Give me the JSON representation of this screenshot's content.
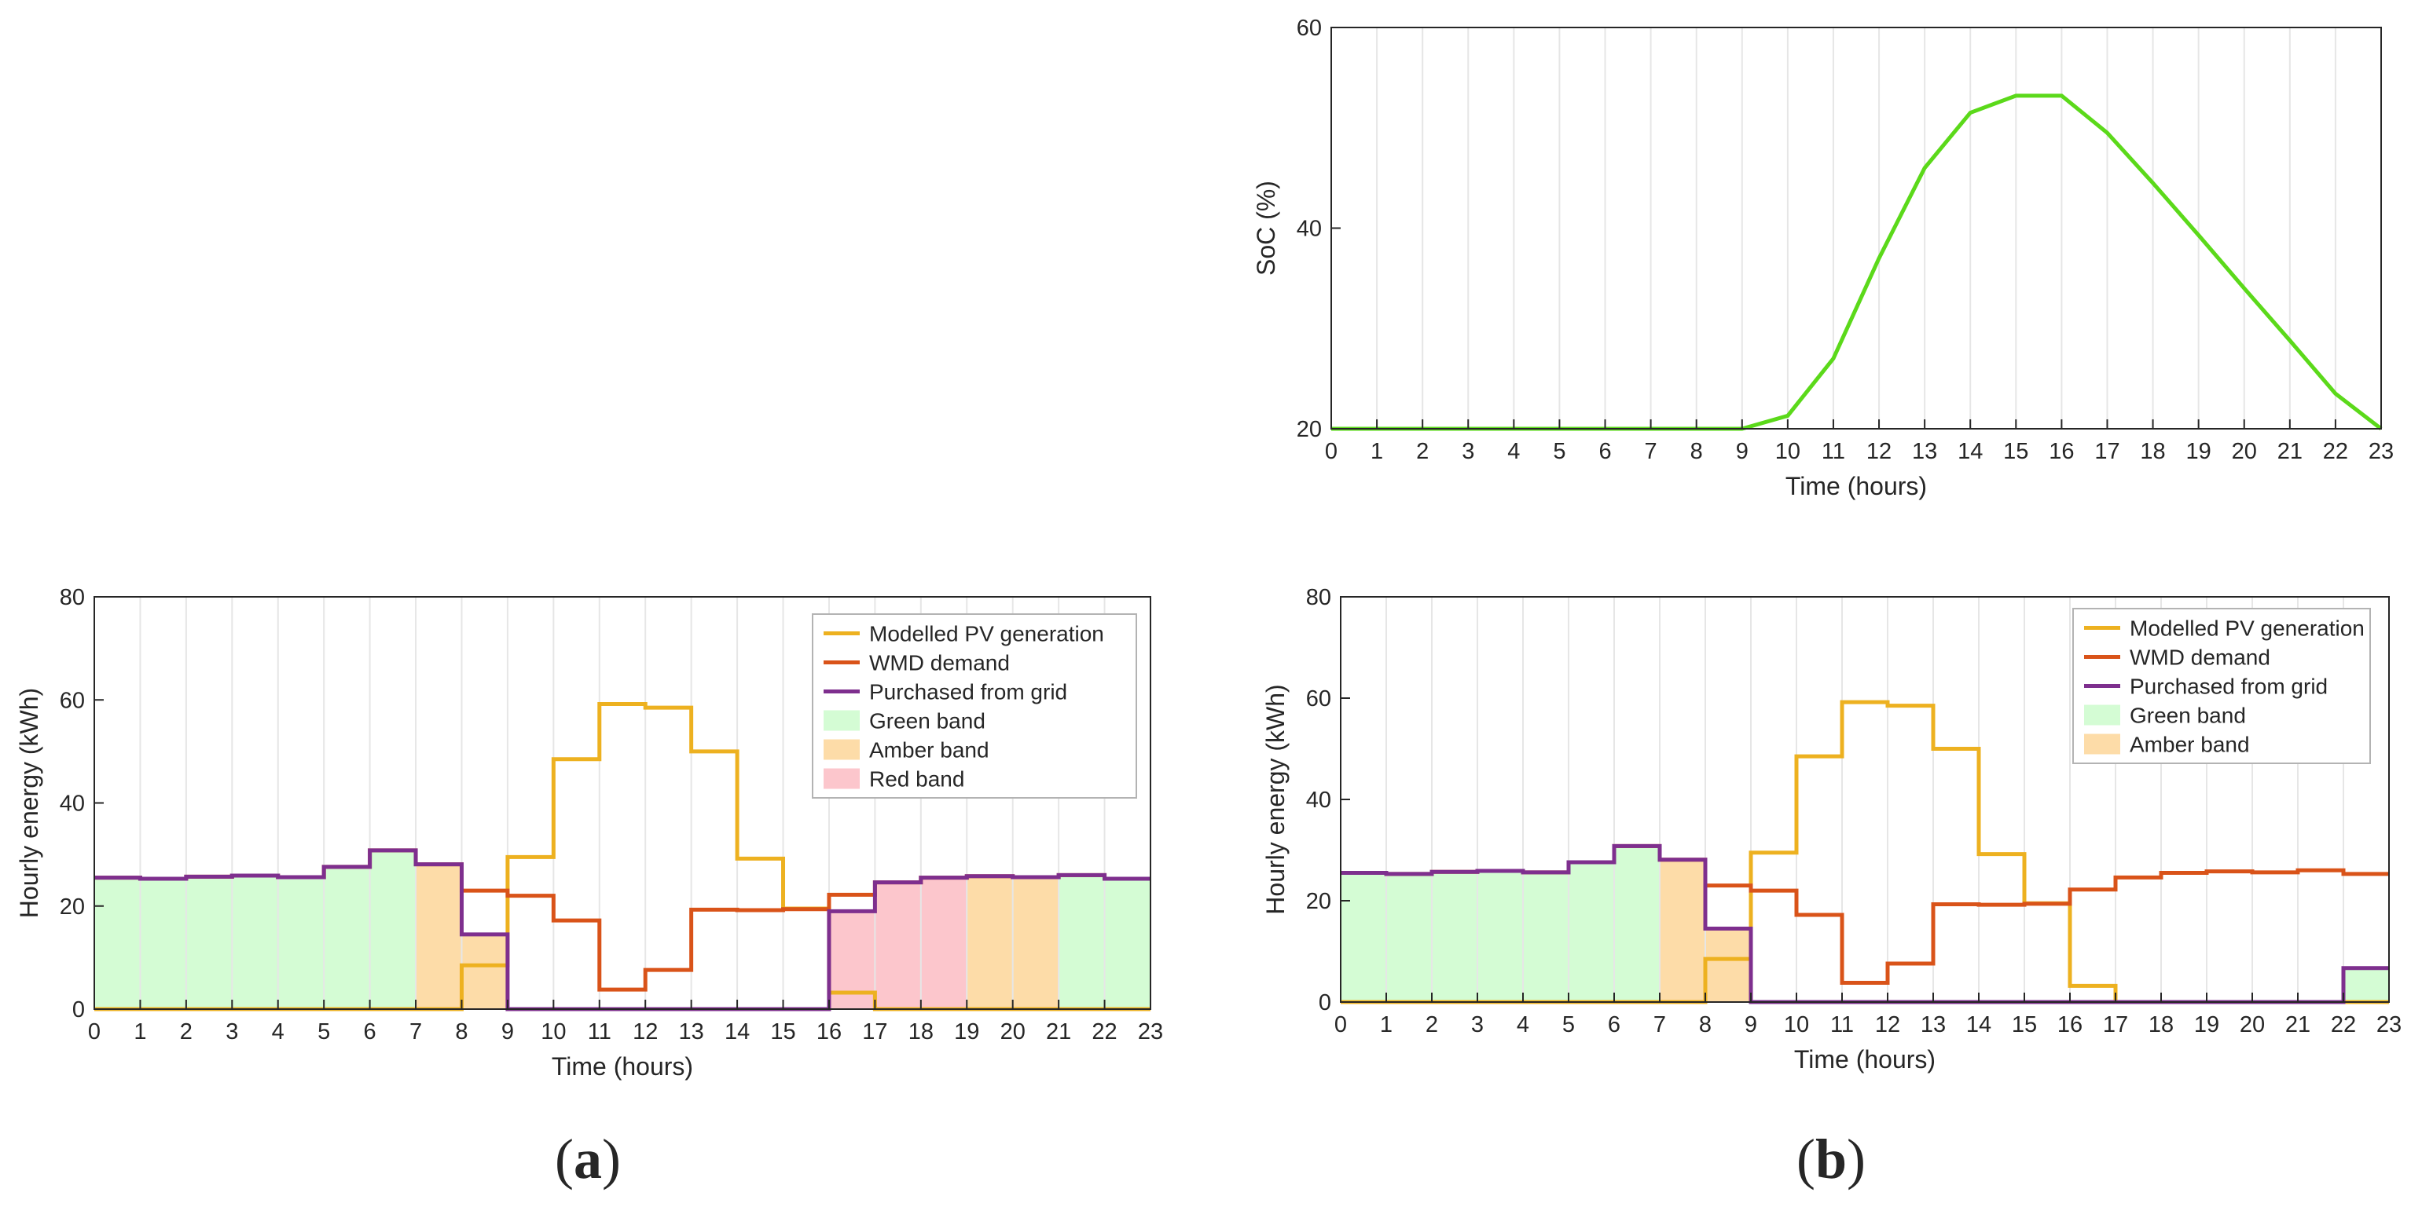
{
  "colors": {
    "pv": "#EDB120",
    "demand": "#D95319",
    "grid": "#7E2F8E",
    "soc": "#5BD91A",
    "green_band": "#D4FCD4",
    "amber_band": "#FDDCA8",
    "red_band": "#FCC6CC",
    "gridline": "#E6E6E6",
    "axis": "#262626"
  },
  "panel_labels": {
    "a": {
      "open": "(",
      "letter": "a",
      "close": ")"
    },
    "b": {
      "open": "(",
      "letter": "b",
      "close": ")"
    }
  },
  "chart_data": [
    {
      "id": "soc",
      "type": "line",
      "title": "",
      "xlabel": "Time (hours)",
      "ylabel": "SoC (%)",
      "xlim": [
        0,
        23
      ],
      "ylim": [
        20,
        60
      ],
      "xticks": [
        0,
        1,
        2,
        3,
        4,
        5,
        6,
        7,
        8,
        9,
        10,
        11,
        12,
        13,
        14,
        15,
        16,
        17,
        18,
        19,
        20,
        21,
        22,
        23
      ],
      "yticks": [
        20,
        40,
        60
      ],
      "grid": "vertical",
      "series": [
        {
          "name": "SoC",
          "color_key": "soc",
          "x": [
            0,
            1,
            2,
            3,
            4,
            5,
            6,
            7,
            8,
            9,
            10,
            11,
            12,
            13,
            14,
            15,
            16,
            17,
            18,
            19,
            20,
            21,
            22,
            23
          ],
          "values": [
            20,
            20,
            20,
            20,
            20,
            20,
            20,
            20,
            20,
            20,
            21.3,
            27,
            37,
            46,
            51.5,
            53.2,
            53.2,
            49.5,
            44.5,
            39.3,
            34,
            28.8,
            23.5,
            20
          ]
        }
      ]
    },
    {
      "id": "a",
      "type": "step",
      "title": "",
      "xlabel": "Time (hours)",
      "ylabel": "Hourly energy (kWh)",
      "xlim": [
        0,
        23
      ],
      "ylim": [
        0,
        80
      ],
      "xticks": [
        0,
        1,
        2,
        3,
        4,
        5,
        6,
        7,
        8,
        9,
        10,
        11,
        12,
        13,
        14,
        15,
        16,
        17,
        18,
        19,
        20,
        21,
        22,
        23
      ],
      "yticks": [
        0,
        20,
        40,
        60,
        80
      ],
      "grid": "vertical",
      "legend_position": "top-right",
      "series": [
        {
          "name": "Modelled PV generation",
          "color_key": "pv",
          "values": [
            0,
            0,
            0,
            0,
            0,
            0,
            0,
            0,
            8.5,
            29.5,
            48.5,
            59.2,
            58.5,
            50,
            29.2,
            19.5,
            3.2,
            0,
            0,
            0,
            0,
            0,
            0
          ]
        },
        {
          "name": "WMD demand",
          "color_key": "demand",
          "values": [
            25.5,
            25.3,
            25.7,
            25.9,
            25.6,
            27.6,
            30.8,
            28.1,
            23,
            22,
            17.2,
            3.8,
            7.6,
            19.3,
            19.2,
            19.4,
            22.2,
            24.6,
            25.5,
            25.8,
            25.6,
            26,
            25.3
          ]
        },
        {
          "name": "Purchased from grid",
          "color_key": "grid",
          "values": [
            25.5,
            25.3,
            25.7,
            25.9,
            25.6,
            27.6,
            30.8,
            28.1,
            14.5,
            0,
            0,
            0,
            0,
            0,
            0,
            0,
            19,
            24.6,
            25.5,
            25.8,
            25.6,
            26,
            25.3
          ]
        }
      ],
      "bands": [
        {
          "name": "Green band",
          "color_key": "green_band",
          "show_in_legend": true
        },
        {
          "name": "Amber band",
          "color_key": "amber_band",
          "show_in_legend": true
        },
        {
          "name": "Red band",
          "color_key": "red_band",
          "show_in_legend": true
        }
      ],
      "band_segments": [
        {
          "band": "Green band",
          "from": 0,
          "to": 7
        },
        {
          "band": "Amber band",
          "from": 7,
          "to": 9
        },
        {
          "band": "Red band",
          "from": 16,
          "to": 19
        },
        {
          "band": "Amber band",
          "from": 19,
          "to": 21
        },
        {
          "band": "Green band",
          "from": 21,
          "to": 23
        }
      ]
    },
    {
      "id": "b",
      "type": "step",
      "title": "",
      "xlabel": "Time (hours)",
      "ylabel": "Hourly energy (kWh)",
      "xlim": [
        0,
        23
      ],
      "ylim": [
        0,
        80
      ],
      "xticks": [
        0,
        1,
        2,
        3,
        4,
        5,
        6,
        7,
        8,
        9,
        10,
        11,
        12,
        13,
        14,
        15,
        16,
        17,
        18,
        19,
        20,
        21,
        22,
        23
      ],
      "yticks": [
        0,
        20,
        40,
        60,
        80
      ],
      "grid": "vertical",
      "legend_position": "top-right",
      "series": [
        {
          "name": "Modelled PV generation",
          "color_key": "pv",
          "values": [
            0,
            0,
            0,
            0,
            0,
            0,
            0,
            0,
            8.5,
            29.5,
            48.5,
            59.2,
            58.5,
            50,
            29.2,
            19.5,
            3.2,
            0,
            0,
            0,
            0,
            0,
            0
          ]
        },
        {
          "name": "WMD demand",
          "color_key": "demand",
          "values": [
            25.5,
            25.3,
            25.7,
            25.9,
            25.6,
            27.6,
            30.8,
            28.1,
            23,
            22,
            17.2,
            3.8,
            7.6,
            19.3,
            19.2,
            19.4,
            22.2,
            24.6,
            25.5,
            25.8,
            25.6,
            26,
            25.3
          ]
        },
        {
          "name": "Purchased from grid",
          "color_key": "grid",
          "values": [
            25.5,
            25.3,
            25.7,
            25.9,
            25.6,
            27.6,
            30.8,
            28.1,
            14.5,
            0,
            0,
            0,
            0,
            0,
            0,
            0,
            0,
            0,
            0,
            0,
            0,
            0,
            6.7
          ]
        }
      ],
      "bands": [
        {
          "name": "Green band",
          "color_key": "green_band",
          "show_in_legend": true
        },
        {
          "name": "Amber band",
          "color_key": "amber_band",
          "show_in_legend": true
        }
      ],
      "band_segments": [
        {
          "band": "Green band",
          "from": 0,
          "to": 7
        },
        {
          "band": "Amber band",
          "from": 7,
          "to": 9
        },
        {
          "band": "Green band",
          "from": 22,
          "to": 23
        }
      ]
    }
  ]
}
